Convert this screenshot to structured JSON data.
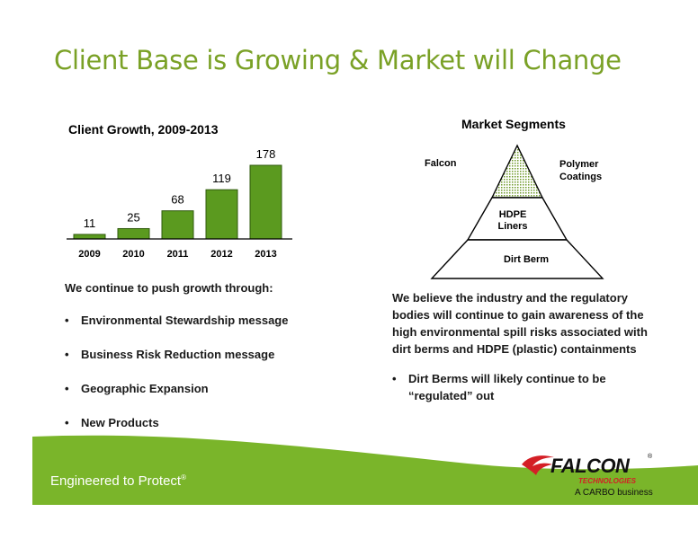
{
  "slide": {
    "title": "Client Base is Growing & Market will Change"
  },
  "chart_data": {
    "type": "bar",
    "title": "Client Growth, 2009-2013",
    "categories": [
      "2009",
      "2010",
      "2011",
      "2012",
      "2013"
    ],
    "values": [
      11,
      25,
      68,
      119,
      178
    ],
    "xlabel": "",
    "ylabel": "",
    "ylim": [
      0,
      200
    ],
    "color": "#5b9a1f",
    "grid": false
  },
  "left": {
    "intro": "We continue to push growth through:",
    "bullets": [
      "Environmental Stewardship message",
      "Business Risk Reduction message",
      "Geographic Expansion",
      "New Products"
    ]
  },
  "segments": {
    "title": "Market Segments",
    "falcon": "Falcon",
    "polymer_line1": "Polymer",
    "polymer_line2": "Coatings",
    "hdpe_line1": "HDPE",
    "hdpe_line2": "Liners",
    "dirt": "Dirt Berm"
  },
  "right": {
    "paragraph": "We believe the industry and the regulatory bodies will continue to gain awareness of the high environmental spill risks associated with dirt berms and HDPE (plastic) containments",
    "bullets": [
      "Dirt Berms will likely continue to be “regulated” out"
    ]
  },
  "footer": {
    "tagline": "Engineered to Protect",
    "tagline_mark": "®",
    "logo_word": "FALCON",
    "logo_reg": "®",
    "logo_sub": "TECHNOLOGIES",
    "logo_carbo": "A CARBO business",
    "green": "#7ab52a",
    "accent": "#d41f26"
  }
}
